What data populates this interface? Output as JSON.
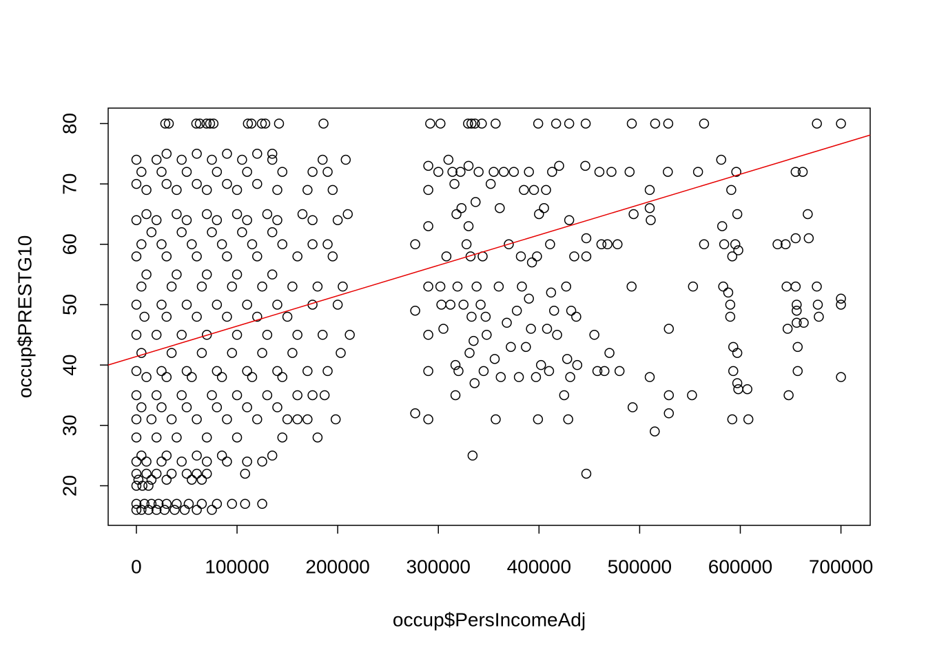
{
  "chart_data": {
    "type": "scatter",
    "x_label": "occup$PersIncomeAdj",
    "y_label": "occup$PRESTG10",
    "xlim": [
      -28040,
      729040
    ],
    "ylim": [
      13.44,
      82.56
    ],
    "xticks": [
      0,
      100000,
      200000,
      300000,
      400000,
      500000,
      600000,
      700000
    ],
    "yticks": [
      20,
      30,
      40,
      50,
      60,
      70,
      80
    ],
    "series": [
      {
        "type": "scatter",
        "color": "#000000",
        "x": [
          0,
          8000,
          15000,
          22000,
          30000,
          40000,
          52000,
          65000,
          80000,
          95000,
          108000,
          125000,
          0,
          5000,
          12000,
          20000,
          28000,
          38000,
          48000,
          60000,
          75000,
          0,
          10000,
          20000,
          35000,
          50000,
          60000,
          70000,
          108000,
          2000,
          15000,
          30000,
          55000,
          65000,
          0,
          6000,
          12000,
          0,
          10000,
          25000,
          45000,
          70000,
          90000,
          110000,
          125000,
          5000,
          30000,
          60000,
          85000,
          135000,
          0,
          20000,
          40000,
          70000,
          100000,
          145000,
          180000,
          0,
          15000,
          35000,
          60000,
          90000,
          120000,
          150000,
          160000,
          170000,
          198000,
          5000,
          25000,
          50000,
          80000,
          110000,
          140000,
          0,
          20000,
          45000,
          75000,
          100000,
          130000,
          160000,
          175000,
          187000,
          10000,
          30000,
          55000,
          85000,
          115000,
          145000,
          0,
          25000,
          50000,
          80000,
          110000,
          140000,
          170000,
          190000,
          5000,
          35000,
          65000,
          95000,
          125000,
          155000,
          203000,
          0,
          20000,
          45000,
          70000,
          100000,
          130000,
          160000,
          185000,
          212000,
          8000,
          30000,
          60000,
          90000,
          120000,
          150000,
          0,
          25000,
          50000,
          80000,
          110000,
          140000,
          175000,
          200000,
          5000,
          35000,
          65000,
          95000,
          125000,
          155000,
          180000,
          205000,
          10000,
          40000,
          70000,
          100000,
          135000,
          0,
          30000,
          60000,
          90000,
          120000,
          160000,
          195000,
          5000,
          25000,
          55000,
          85000,
          115000,
          145000,
          175000,
          190000,
          15000,
          45000,
          75000,
          105000,
          135000,
          0,
          20000,
          50000,
          80000,
          110000,
          140000,
          175000,
          200000,
          10000,
          40000,
          70000,
          100000,
          130000,
          165000,
          210000,
          10000,
          40000,
          70000,
          100000,
          140000,
          170000,
          195000,
          0,
          30000,
          60000,
          90000,
          120000,
          5000,
          25000,
          50000,
          80000,
          110000,
          145000,
          175000,
          190000,
          0,
          20000,
          45000,
          75000,
          105000,
          135000,
          185000,
          208000,
          30000,
          60000,
          90000,
          120000,
          135000,
          28700,
          32200,
          59500,
          63000,
          69700,
          73200,
          76600,
          110800,
          114300,
          124600,
          128000,
          141700,
          185900,
          291900,
          302100,
          329500,
          332900,
          336300,
          343200,
          356900,
          399200,
          417000,
          430000,
          446400,
          492200,
          515400,
          528400,
          564000,
          676100,
          700000,
          277000,
          277000,
          277000,
          290000,
          290000,
          290000,
          290000,
          290000,
          290000,
          290000,
          300000,
          302000,
          303000,
          305000,
          308000,
          310000,
          312000,
          314000,
          316000,
          317000,
          317000,
          318000,
          319000,
          320000,
          322000,
          323000,
          325000,
          328000,
          330000,
          330000,
          331000,
          332000,
          333000,
          334000,
          335000,
          336000,
          337000,
          338000,
          340000,
          342000,
          344000,
          345000,
          347000,
          348000,
          352000,
          355000,
          356000,
          357000,
          360000,
          361000,
          362000,
          365000,
          368000,
          370000,
          372000,
          375000,
          378000,
          380000,
          382000,
          383000,
          385000,
          387000,
          390000,
          390000,
          392000,
          393000,
          395000,
          397000,
          398000,
          399000,
          400000,
          402000,
          405000,
          407000,
          408000,
          410000,
          411000,
          412000,
          413000,
          415000,
          418000,
          420000,
          425000,
          427000,
          428000,
          429000,
          430000,
          431000,
          432000,
          435000,
          437000,
          438000,
          446000,
          447000,
          447000,
          447000,
          455000,
          458000,
          460000,
          462000,
          465000,
          468000,
          470000,
          472000,
          478000,
          480000,
          490000,
          492000,
          493000,
          494000,
          510000,
          510000,
          510000,
          511000,
          515000,
          528000,
          529000,
          529000,
          529000,
          552000,
          553000,
          558000,
          564000,
          581000,
          582000,
          583000,
          584000,
          588000,
          590000,
          590000,
          591000,
          592000,
          593000,
          593000,
          592000,
          595000,
          596000,
          597000,
          597000,
          597000,
          598000,
          598000,
          607000,
          608000,
          637000,
          645000,
          646000,
          647000,
          648000,
          655000,
          655000,
          655000,
          656000,
          656000,
          656000,
          657000,
          657000,
          662000,
          663000,
          667000,
          668000,
          676000,
          677000,
          678000,
          700000,
          700000,
          700000
        ],
        "values": [
          17,
          17,
          17,
          17,
          17,
          17,
          17,
          17,
          17,
          17,
          17,
          17,
          16,
          16,
          16,
          16,
          16,
          16,
          16,
          16,
          16,
          22,
          22,
          22,
          22,
          22,
          22,
          22,
          22,
          21,
          21,
          21,
          21,
          21,
          20,
          20,
          20,
          24,
          24,
          24,
          24,
          24,
          24,
          24,
          24,
          25,
          25,
          25,
          25,
          25,
          28,
          28,
          28,
          28,
          28,
          28,
          28,
          31,
          31,
          31,
          31,
          31,
          31,
          31,
          31,
          31,
          31,
          33,
          33,
          33,
          33,
          33,
          33,
          35,
          35,
          35,
          35,
          35,
          35,
          35,
          35,
          35,
          38,
          38,
          38,
          38,
          38,
          38,
          39,
          39,
          39,
          39,
          39,
          39,
          39,
          39,
          42,
          42,
          42,
          42,
          42,
          42,
          42,
          45,
          45,
          45,
          45,
          45,
          45,
          45,
          45,
          45,
          48,
          48,
          48,
          48,
          48,
          48,
          50,
          50,
          50,
          50,
          50,
          50,
          50,
          50,
          53,
          53,
          53,
          53,
          53,
          53,
          53,
          53,
          55,
          55,
          55,
          55,
          55,
          58,
          58,
          58,
          58,
          58,
          58,
          58,
          60,
          60,
          60,
          60,
          60,
          60,
          60,
          60,
          62,
          62,
          62,
          62,
          62,
          64,
          64,
          64,
          64,
          64,
          64,
          64,
          64,
          65,
          65,
          65,
          65,
          65,
          65,
          65,
          69,
          69,
          69,
          69,
          69,
          69,
          69,
          70,
          70,
          70,
          70,
          70,
          72,
          72,
          72,
          72,
          72,
          72,
          72,
          72,
          74,
          74,
          74,
          74,
          74,
          74,
          74,
          74,
          75,
          75,
          75,
          75,
          75,
          80,
          80,
          80,
          80,
          80,
          80,
          80,
          80,
          80,
          80,
          80,
          80,
          80,
          80,
          80,
          80,
          80,
          80,
          80,
          80,
          80,
          80,
          80,
          80,
          80,
          80,
          80,
          80,
          80,
          80,
          60,
          49,
          32,
          73,
          69,
          63,
          53,
          45,
          39,
          31,
          72,
          53,
          50,
          46,
          58,
          74,
          50,
          72,
          70,
          35,
          40,
          65,
          53,
          39,
          72,
          66,
          50,
          60,
          73,
          63,
          42,
          58,
          48,
          25,
          44,
          37,
          67,
          53,
          72,
          50,
          58,
          39,
          48,
          45,
          70,
          72,
          41,
          31,
          53,
          66,
          38,
          72,
          47,
          60,
          43,
          72,
          49,
          38,
          58,
          53,
          69,
          43,
          72,
          51,
          46,
          57,
          69,
          38,
          58,
          31,
          65,
          40,
          66,
          69,
          46,
          39,
          60,
          52,
          72,
          49,
          45,
          73,
          35,
          53,
          41,
          31,
          64,
          38,
          49,
          58,
          48,
          40,
          73,
          61,
          22,
          58,
          45,
          39,
          72,
          60,
          39,
          60,
          42,
          72,
          60,
          39,
          72,
          53,
          33,
          65,
          69,
          66,
          38,
          64,
          29,
          72,
          46,
          35,
          32,
          35,
          53,
          72,
          60,
          74,
          63,
          53,
          60,
          52,
          50,
          48,
          69,
          58,
          43,
          39,
          31,
          60,
          72,
          65,
          42,
          37,
          36,
          59,
          36,
          31,
          60,
          60,
          53,
          46,
          35,
          61,
          72,
          53,
          50,
          49,
          47,
          43,
          39,
          72,
          47,
          65,
          61,
          53,
          50,
          48,
          51,
          50,
          38
        ]
      },
      {
        "type": "line",
        "color": "#e60000",
        "x": [
          -28040,
          729040
        ],
        "values": [
          40.0,
          78.1
        ]
      }
    ]
  }
}
